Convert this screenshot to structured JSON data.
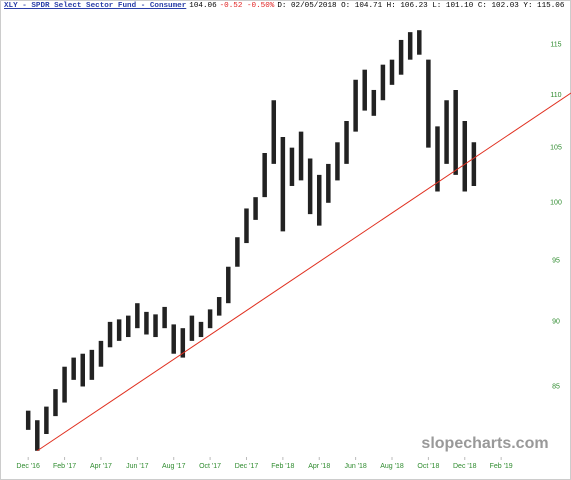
{
  "chart_data": {
    "type": "ohlc",
    "title": "XLY - SPDR Select Sector Fund - Consumer",
    "quote": {
      "last": "104.06",
      "change": "-0.52 -0.50%",
      "details": "D: 02/05/2018 O: 104.71 H: 106.23 L: 101.10 C: 102.03 Y: 115.06"
    },
    "watermark": "slopecharts.com",
    "color": "#222222",
    "axis_label_color": "#2e8b2e",
    "log_scale": true,
    "grid": false,
    "x": [
      0,
      0.5,
      1,
      1.5,
      2,
      2.5,
      3,
      3.5,
      4,
      4.5,
      5,
      5.5,
      6,
      6.5,
      7,
      7.5,
      8,
      8.5,
      9,
      9.5,
      10,
      10.5,
      11,
      11.5,
      12,
      12.5,
      13,
      13.5,
      14,
      14.5,
      15,
      15.5,
      16,
      16.5,
      17,
      17.5,
      18,
      18.5,
      19,
      19.5,
      20,
      20.5,
      21,
      21.5,
      22,
      22.5,
      23,
      23.5,
      24,
      24.5
    ],
    "high": [
      83.2,
      82.5,
      83.5,
      84.8,
      86.5,
      87.2,
      87.5,
      87.8,
      88.5,
      90.0,
      90.2,
      90.5,
      91.5,
      90.8,
      90.6,
      91.2,
      89.8,
      89.5,
      90.5,
      90.0,
      91.0,
      92.0,
      94.5,
      97.0,
      99.5,
      100.5,
      104.5,
      109.5,
      106.0,
      105.0,
      106.5,
      104.0,
      102.5,
      103.5,
      105.5,
      107.5,
      111.5,
      112.5,
      110.5,
      113.0,
      113.5,
      115.5,
      116.3,
      116.5,
      113.5,
      107.0,
      109.5,
      110.5,
      107.5,
      105.5
    ],
    "low": [
      81.8,
      80.3,
      81.5,
      82.8,
      83.8,
      85.5,
      85.0,
      85.5,
      86.5,
      88.0,
      88.5,
      88.8,
      89.5,
      89.0,
      88.8,
      89.5,
      87.5,
      87.2,
      88.5,
      88.8,
      89.5,
      90.5,
      91.5,
      94.5,
      96.5,
      98.5,
      100.5,
      103.5,
      97.5,
      101.5,
      102.0,
      99.0,
      98.0,
      100.0,
      102.0,
      103.5,
      106.5,
      108.5,
      108.0,
      109.5,
      111.0,
      112.0,
      113.5,
      114.0,
      105.0,
      101.0,
      103.5,
      102.5,
      101.0,
      101.5
    ],
    "trendline": {
      "color": "#e03020",
      "x": [
        0.5,
        29.84
      ],
      "y": [
        80.3,
        110.2
      ]
    },
    "xlim": [
      -1,
      29.84
    ],
    "xticks": [
      {
        "value": 0,
        "label": "Dec '16"
      },
      {
        "value": 2,
        "label": "Feb '17"
      },
      {
        "value": 4,
        "label": "Apr '17"
      },
      {
        "value": 6,
        "label": "Jun '17"
      },
      {
        "value": 8,
        "label": "Aug '17"
      },
      {
        "value": 10,
        "label": "Oct '17"
      },
      {
        "value": 12,
        "label": "Dec '17"
      },
      {
        "value": 14,
        "label": "Feb '18"
      },
      {
        "value": 16,
        "label": "Apr '18"
      },
      {
        "value": 18,
        "label": "Jun '18"
      },
      {
        "value": 20,
        "label": "Aug '18"
      },
      {
        "value": 22,
        "label": "Oct '18"
      },
      {
        "value": 24,
        "label": "Dec '18"
      },
      {
        "value": 26,
        "label": "Feb '19"
      }
    ],
    "ylim": [
      80,
      118.6
    ],
    "yticks": [
      85,
      90,
      95,
      100,
      105,
      110,
      115
    ]
  }
}
